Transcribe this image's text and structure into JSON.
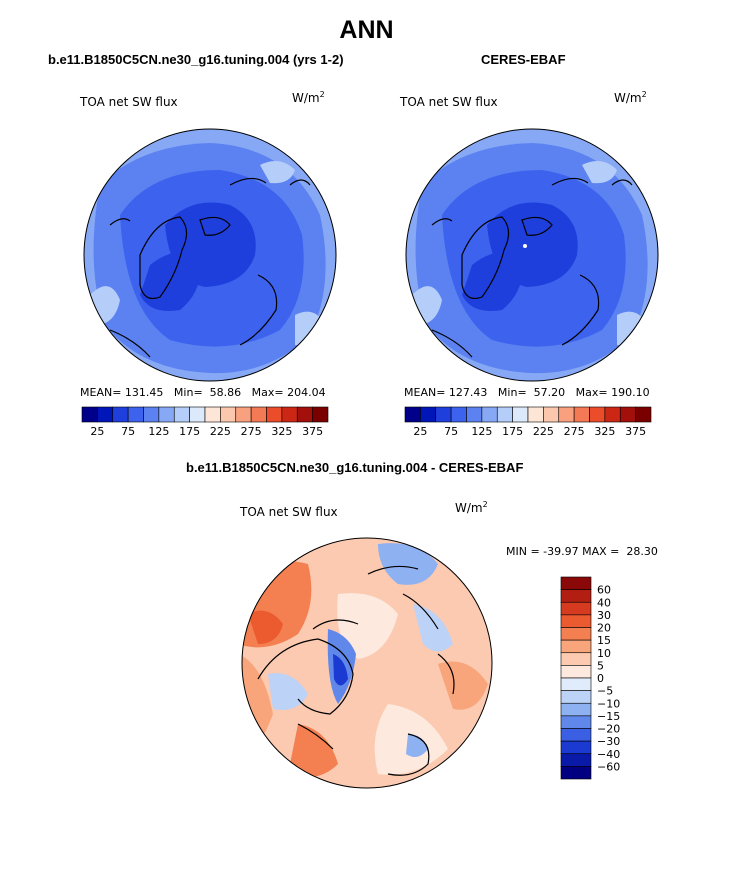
{
  "page_title": "ANN",
  "panels": [
    {
      "case_title": "b.e11.B1850C5CN.ne30_g16.tuning.004 (yrs 1-2)",
      "variable": "TOA net SW flux",
      "units_base": "W/m",
      "units_exp": "2",
      "stats": {
        "mean_label": "MEAN=",
        "mean": "131.45",
        "min_label": "Min=",
        "min": "58.86",
        "max_label": "Max=",
        "max": "204.04"
      }
    },
    {
      "case_title": "CERES-EBAF",
      "variable": "TOA net SW flux",
      "units_base": "W/m",
      "units_exp": "2",
      "stats": {
        "mean_label": "MEAN=",
        "mean": "127.43",
        "min_label": "Min=",
        "min": "57.20",
        "max_label": "Max=",
        "max": "190.10"
      }
    }
  ],
  "diff_panel": {
    "case_title": "b.e11.B1850C5CN.ne30_g16.tuning.004 - CERES-EBAF",
    "variable": "TOA net SW flux",
    "units_base": "W/m",
    "units_exp": "2",
    "minmax_text": "MIN = -39.97 MAX =  28.30"
  },
  "chart_data": [
    {
      "type": "heatmap",
      "projection": "north-polar-stereographic",
      "title": "b.e11.B1850C5CN.ne30_g16.tuning.004 (yrs 1-2)",
      "variable": "TOA net SW flux",
      "units": "W/m2",
      "mean": 131.45,
      "min": 58.86,
      "max": 204.04,
      "colorbar": {
        "orientation": "horizontal",
        "levels": [
          25,
          50,
          75,
          100,
          125,
          150,
          175,
          200,
          225,
          250,
          275,
          300,
          325,
          350,
          375
        ],
        "tick_labels": [
          "25",
          "75",
          "125",
          "175",
          "225",
          "275",
          "325",
          "375"
        ],
        "colors": [
          "#00008a",
          "#0016b8",
          "#1f3fdd",
          "#3d62ee",
          "#5b82f0",
          "#87a8f5",
          "#b5cdf9",
          "#dce9fb",
          "#fde6d6",
          "#fcc8ad",
          "#f9a07e",
          "#f47a55",
          "#eb4d2b",
          "#cc2615",
          "#a30f0b",
          "#7a0000"
        ]
      }
    },
    {
      "type": "heatmap",
      "projection": "north-polar-stereographic",
      "title": "CERES-EBAF",
      "variable": "TOA net SW flux",
      "units": "W/m2",
      "mean": 127.43,
      "min": 57.2,
      "max": 190.1,
      "colorbar": {
        "orientation": "horizontal",
        "levels": [
          25,
          50,
          75,
          100,
          125,
          150,
          175,
          200,
          225,
          250,
          275,
          300,
          325,
          350,
          375
        ],
        "tick_labels": [
          "25",
          "75",
          "125",
          "175",
          "225",
          "275",
          "325",
          "375"
        ],
        "colors": [
          "#00008a",
          "#0016b8",
          "#1f3fdd",
          "#3d62ee",
          "#5b82f0",
          "#87a8f5",
          "#b5cdf9",
          "#dce9fb",
          "#fde6d6",
          "#fcc8ad",
          "#f9a07e",
          "#f47a55",
          "#eb4d2b",
          "#cc2615",
          "#a30f0b",
          "#7a0000"
        ]
      }
    },
    {
      "type": "heatmap",
      "projection": "north-polar-stereographic",
      "title": "b.e11.B1850C5CN.ne30_g16.tuning.004 - CERES-EBAF",
      "variable": "TOA net SW flux",
      "units": "W/m2",
      "min": -39.97,
      "max": 28.3,
      "colorbar": {
        "orientation": "vertical",
        "levels": [
          60,
          40,
          30,
          20,
          15,
          10,
          5,
          0,
          -5,
          -10,
          -15,
          -20,
          -30,
          -40,
          -60
        ],
        "tick_labels": [
          "60",
          "40",
          "30",
          "20",
          "15",
          "10",
          "5",
          "0",
          "−5",
          "−10",
          "−15",
          "−20",
          "−30",
          "−40",
          "−60"
        ],
        "colors": [
          "#8a0808",
          "#b31e12",
          "#d63a1f",
          "#ec5a30",
          "#f47f51",
          "#f8a57c",
          "#fbcab1",
          "#fde9de",
          "#e0ecfb",
          "#bcd2f6",
          "#8eb1f1",
          "#6088ea",
          "#3a5fe2",
          "#1a3ad1",
          "#0a1aa8",
          "#000080"
        ]
      }
    }
  ]
}
